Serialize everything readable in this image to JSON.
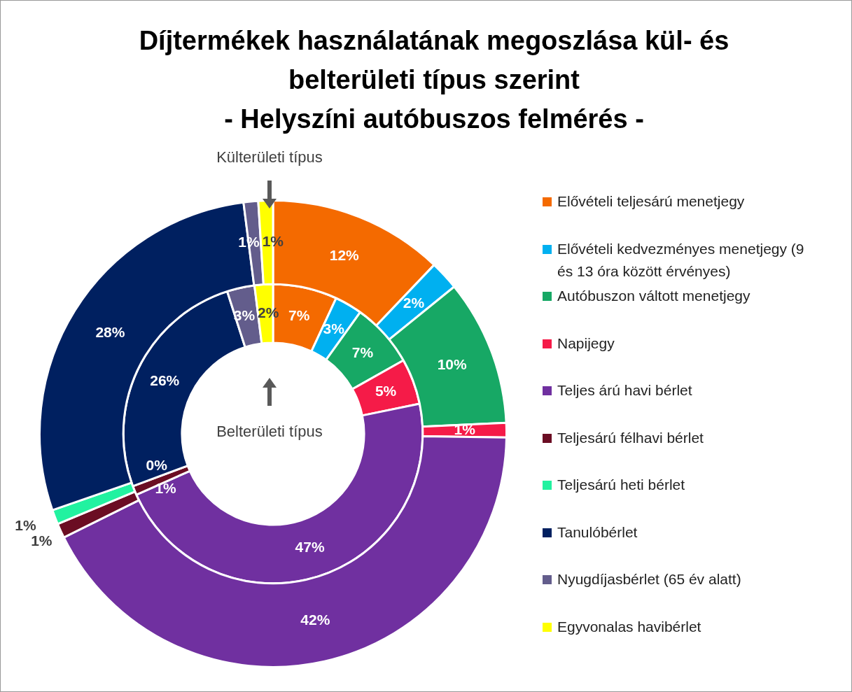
{
  "chart_data": {
    "type": "donut",
    "title": "Díjtermékek használatának megoszlása kül- és belterületi típus szerint",
    "subtitle": "- Helyszíni autóbuszos felmérés -",
    "categories": [
      "Elővételi teljesárú menetjegy",
      "Elővételi kedvezményes menetjegy (9 és 13 óra között érvényes)",
      "Autóbuszon váltott menetjegy",
      "Napijegy",
      "Teljes árú havi bérlet",
      "Teljesárú félhavi bérlet",
      "Teljesárú heti bérlet",
      "Tanulóbérlet",
      "Nyugdíjasbérlet (65 év alatt)",
      "Egyvonalas havibérlet"
    ],
    "colors": [
      "#f46a00",
      "#00b0f0",
      "#17a865",
      "#f51b48",
      "#7030a0",
      "#6b0d23",
      "#22f2a0",
      "#002060",
      "#635d8c",
      "#ffff00"
    ],
    "series": [
      {
        "name": "Külterületi típus",
        "values": [
          12,
          2,
          10,
          1,
          42,
          1,
          1,
          28,
          1,
          1
        ],
        "value_labels": [
          "12%",
          "2%",
          "10%",
          "1%",
          "42%",
          "1%",
          "1%",
          "28%",
          "1%",
          "1%"
        ]
      },
      {
        "name": "Belterületi típus",
        "values": [
          7,
          3,
          7,
          5,
          47,
          1,
          0,
          26,
          3,
          2
        ],
        "value_labels": [
          "7%",
          "3%",
          "7%",
          "5%",
          "47%",
          "1%",
          "0%",
          "26%",
          "3%",
          "2%"
        ]
      }
    ],
    "legend": "right"
  }
}
